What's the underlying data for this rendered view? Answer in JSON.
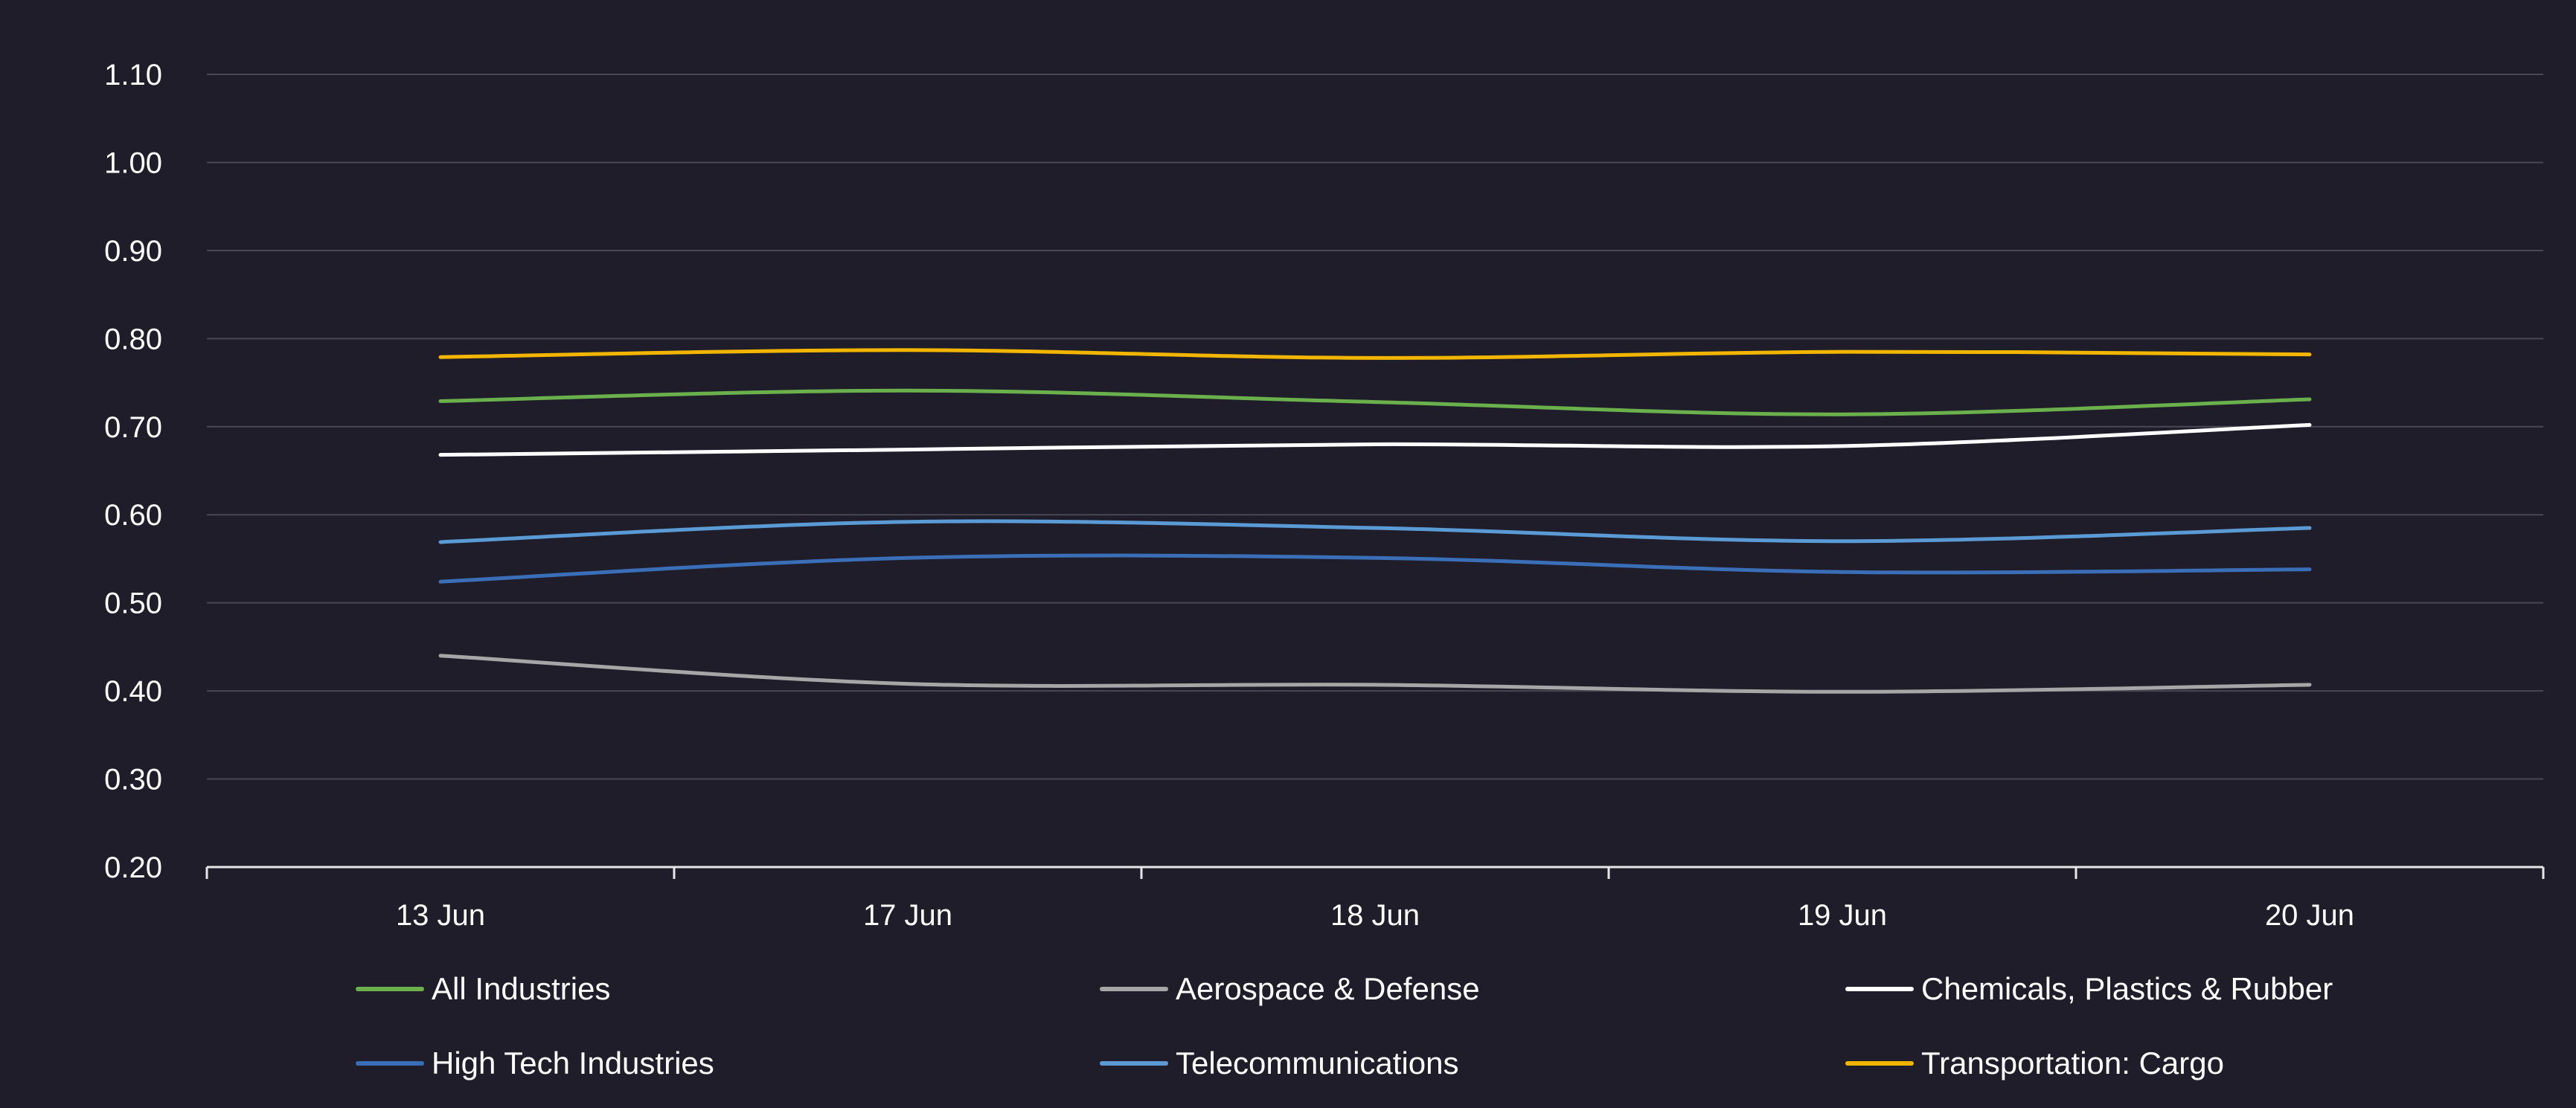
{
  "chart_data": {
    "type": "line",
    "title": "",
    "xlabel": "",
    "ylabel": "",
    "categories": [
      "13 Jun",
      "17 Jun",
      "18 Jun",
      "19 Jun",
      "20 Jun"
    ],
    "ylim": [
      0.2,
      1.1
    ],
    "yticks": [
      "0.20",
      "0.30",
      "0.40",
      "0.50",
      "0.60",
      "0.70",
      "0.80",
      "0.90",
      "1.00",
      "1.10"
    ],
    "grid": true,
    "legend_position": "bottom",
    "series": [
      {
        "name": "All Industries",
        "color": "#6ab04c",
        "values": [
          0.729,
          0.741,
          0.728,
          0.714,
          0.731
        ]
      },
      {
        "name": "Aerospace & Defense",
        "color": "#a6a6a6",
        "values": [
          0.44,
          0.408,
          0.407,
          0.399,
          0.407
        ]
      },
      {
        "name": "Chemicals, Plastics & Rubber",
        "color": "#ffffff",
        "values": [
          0.668,
          0.674,
          0.68,
          0.678,
          0.702
        ]
      },
      {
        "name": "High Tech Industries",
        "color": "#3a6fb8",
        "values": [
          0.524,
          0.551,
          0.551,
          0.535,
          0.538
        ]
      },
      {
        "name": "Telecommunications",
        "color": "#5b9bd5",
        "values": [
          0.569,
          0.592,
          0.585,
          0.57,
          0.585
        ]
      },
      {
        "name": "Transportation: Cargo",
        "color": "#f2b600",
        "values": [
          0.779,
          0.787,
          0.778,
          0.785,
          0.782
        ]
      }
    ]
  }
}
